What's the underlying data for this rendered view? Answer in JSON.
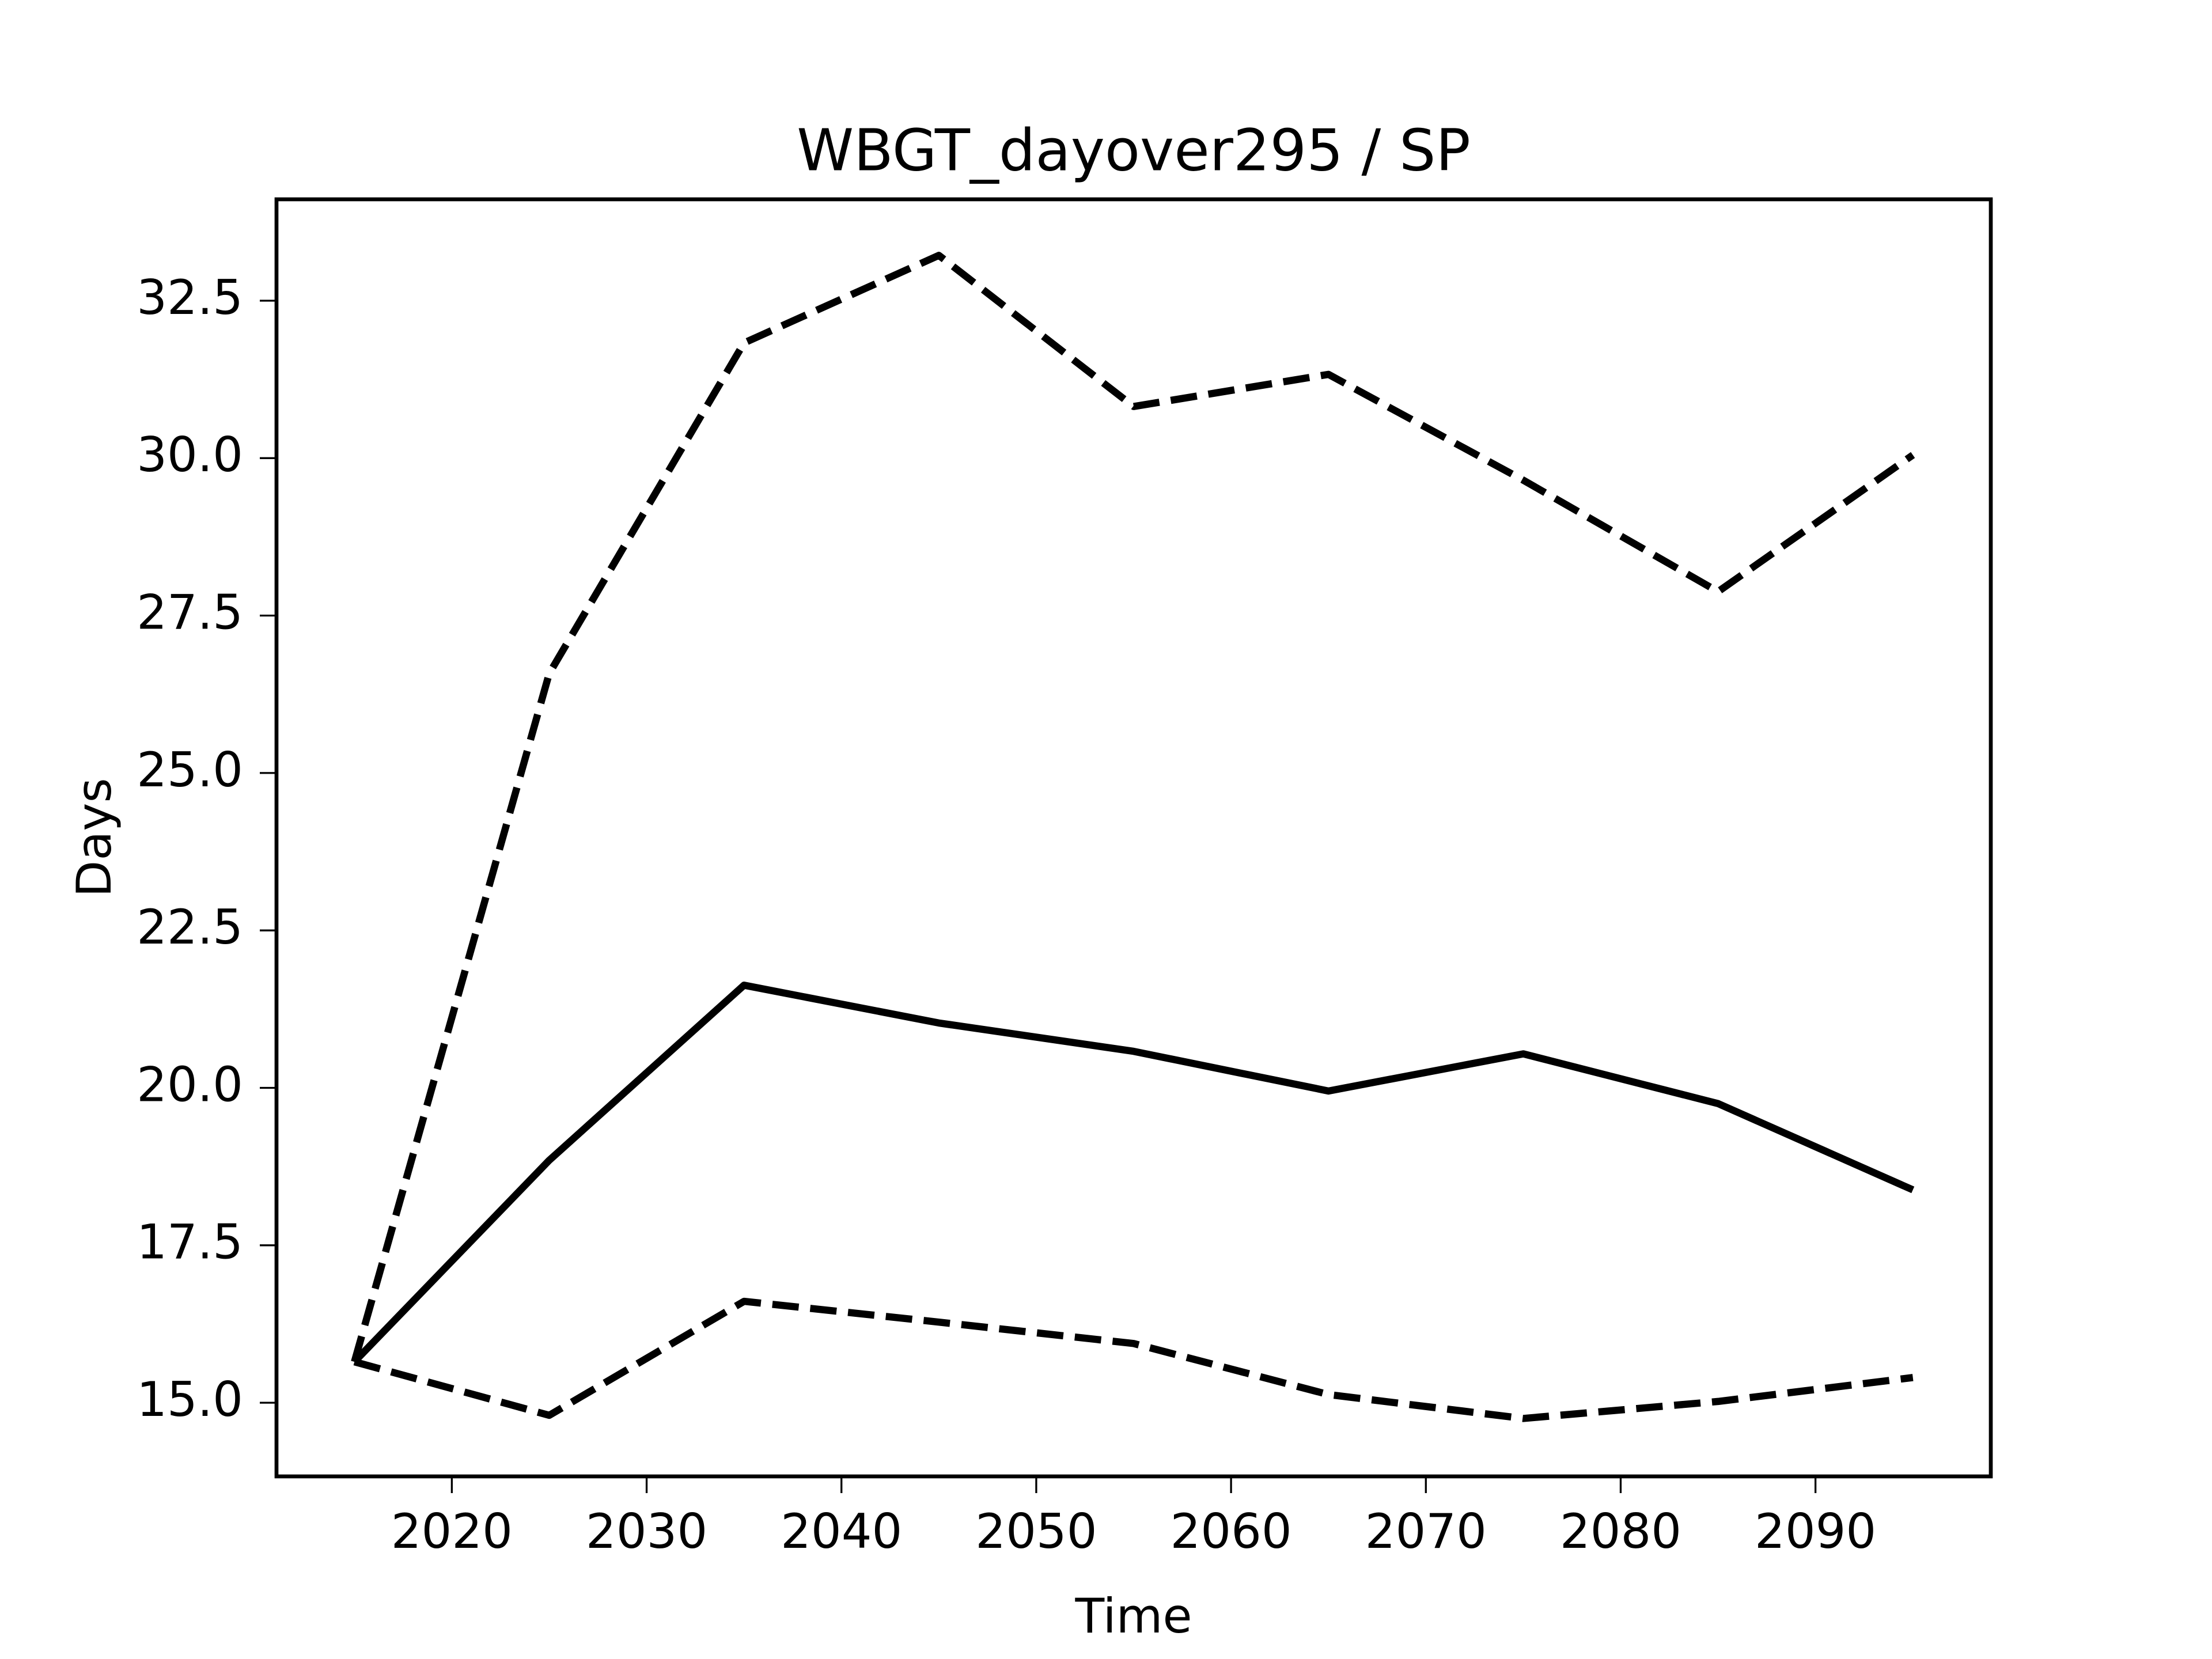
{
  "chart_data": {
    "type": "line",
    "title": "WBGT_dayover295 / SP",
    "xlabel": "Time",
    "ylabel": "Days",
    "x": [
      2015,
      2025,
      2035,
      2045,
      2055,
      2065,
      2075,
      2085,
      2095
    ],
    "series": [
      {
        "color": "#000000",
        "dash": "solid",
        "values": [
          15.65,
          18.85,
          21.63,
          21.03,
          20.58,
          19.95,
          20.54,
          19.75,
          18.38
        ]
      },
      {
        "color": "#000000",
        "dash": "dashed",
        "values": [
          15.65,
          26.58,
          31.83,
          33.22,
          30.82,
          31.33,
          29.65,
          27.88,
          30.05
        ]
      },
      {
        "color": "#000000",
        "dash": "dashed",
        "values": [
          15.65,
          14.8,
          16.61,
          16.28,
          15.94,
          15.13,
          14.75,
          15.02,
          15.4
        ]
      }
    ],
    "xlim": [
      2011,
      2099
    ],
    "xticks": [
      2020,
      2030,
      2040,
      2050,
      2060,
      2070,
      2080,
      2090
    ],
    "ylim": [
      13.83,
      34.11
    ],
    "yticks": [
      {
        "value": 15,
        "label": "15.0"
      },
      {
        "value": 17.5,
        "label": "17.5"
      },
      {
        "value": 20,
        "label": "20.0"
      },
      {
        "value": 22.5,
        "label": "22.5"
      },
      {
        "value": 25,
        "label": "25.0"
      },
      {
        "value": 27.5,
        "label": "27.5"
      },
      {
        "value": 30,
        "label": "30.0"
      },
      {
        "value": 32.5,
        "label": "32.5"
      }
    ],
    "grid": false
  }
}
